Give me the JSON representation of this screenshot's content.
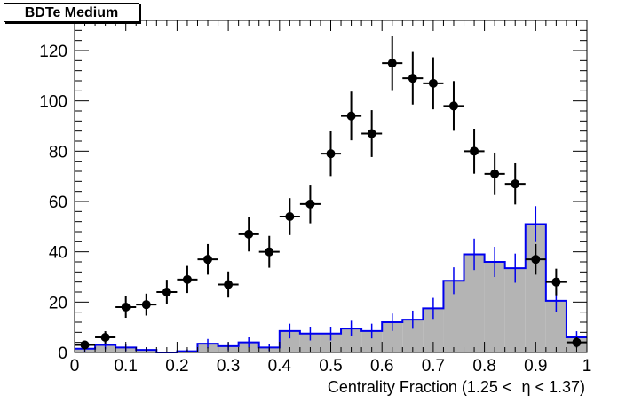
{
  "chart_data": {
    "type": "histogram",
    "title": "BDTe Medium",
    "xlabel_parts": [
      "Centrality Fraction (1.25 < ",
      "η < 1.37)"
    ],
    "xlim": [
      0,
      1
    ],
    "ylim": [
      0,
      132
    ],
    "x_ticks": [
      0,
      0.1,
      0.2,
      0.3,
      0.4,
      0.5,
      0.6,
      0.7,
      0.8,
      0.9,
      1
    ],
    "x_tick_labels": [
      "0",
      "0.1",
      "0.2",
      "0.3",
      "0.4",
      "0.5",
      "0.6",
      "0.7",
      "0.8",
      "0.9",
      "1"
    ],
    "y_ticks": [
      0,
      20,
      40,
      60,
      80,
      100,
      120
    ],
    "y_tick_labels": [
      "0",
      "20",
      "40",
      "60",
      "80",
      "100",
      "120"
    ],
    "bin_width": 0.04,
    "data_points": {
      "x": [
        0.02,
        0.06,
        0.1,
        0.14,
        0.18,
        0.22,
        0.26,
        0.3,
        0.34,
        0.38,
        0.42,
        0.46,
        0.5,
        0.54,
        0.58,
        0.62,
        0.66,
        0.7,
        0.74,
        0.78,
        0.82,
        0.86,
        0.9,
        0.94,
        0.98
      ],
      "y": [
        3,
        6,
        18,
        19,
        24,
        29,
        37,
        27,
        47,
        40,
        54,
        59,
        79,
        94,
        87,
        115,
        109,
        107,
        98,
        80,
        71,
        67,
        37,
        28,
        4
      ],
      "color": "#000000"
    },
    "histogram": {
      "bin_edges": [
        0,
        0.04,
        0.08,
        0.12,
        0.16,
        0.2,
        0.24,
        0.28,
        0.32,
        0.36,
        0.4,
        0.44,
        0.48,
        0.52,
        0.56,
        0.6,
        0.64,
        0.68,
        0.72,
        0.76,
        0.8,
        0.84,
        0.88,
        0.92,
        0.96,
        1.0
      ],
      "values": [
        1.5,
        3,
        2,
        1,
        0,
        0.5,
        3.5,
        2.5,
        4,
        2,
        8.5,
        7.5,
        7.5,
        9.5,
        8.5,
        12,
        13,
        17.5,
        28.5,
        39,
        36,
        33.5,
        51,
        20.5,
        6
      ],
      "line_color": "#0000ee",
      "fill_color": "#b4b4b4"
    }
  }
}
